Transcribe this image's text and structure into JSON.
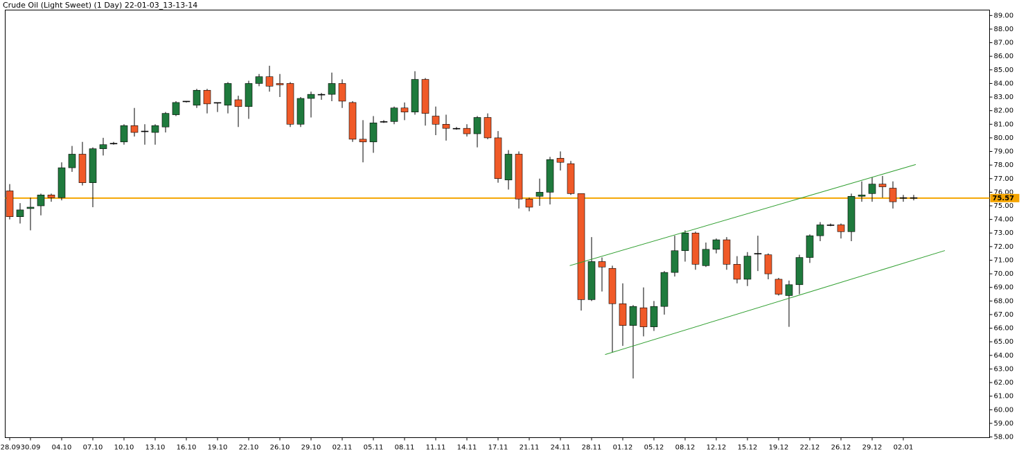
{
  "chart_data": {
    "type": "candlestick",
    "title": "Crude Oil (Light Sweet) (1 Day) 22-01-03_13-13-14",
    "categories": [
      "28.09",
      null,
      "30.09",
      null,
      null,
      "04.10",
      null,
      null,
      "07.10",
      null,
      null,
      "10.10",
      null,
      null,
      "13.10",
      null,
      null,
      "16.10",
      null,
      null,
      "19.10",
      null,
      null,
      "22.10",
      null,
      null,
      "26.10",
      null,
      null,
      "29.10",
      null,
      null,
      "02.11",
      null,
      null,
      "05.11",
      null,
      null,
      "08.11",
      null,
      null,
      "11.11",
      null,
      null,
      "14.11",
      null,
      null,
      "17.11",
      null,
      null,
      "21.11",
      null,
      null,
      "24.11",
      null,
      null,
      "28.11",
      null,
      null,
      "01.12",
      null,
      null,
      "05.12",
      null,
      null,
      "08.12",
      null,
      null,
      "12.12",
      null,
      null,
      "15.12",
      null,
      null,
      "19.12",
      null,
      null,
      "22.12",
      null,
      null,
      "26.12",
      null,
      null,
      "29.12",
      null,
      null,
      "02.01",
      null
    ],
    "open": [
      76.1,
      74.2,
      74.8,
      75.0,
      75.8,
      75.6,
      77.8,
      78.8,
      76.7,
      79.2,
      79.6,
      79.7,
      80.9,
      80.5,
      80.4,
      80.8,
      81.7,
      82.7,
      82.4,
      83.5,
      82.6,
      82.4,
      82.8,
      82.3,
      84.0,
      84.5,
      84.0,
      84.0,
      81.0,
      82.9,
      83.2,
      83.2,
      84.0,
      82.6,
      79.9,
      79.7,
      81.2,
      81.2,
      82.2,
      81.9,
      84.3,
      81.6,
      81.0,
      80.7,
      80.7,
      80.3,
      81.5,
      80.0,
      76.9,
      78.8,
      75.5,
      75.7,
      76.0,
      78.5,
      78.1,
      75.9,
      68.1,
      70.9,
      70.4,
      67.8,
      66.2,
      67.5,
      66.1,
      67.6,
      70.1,
      71.7,
      73.0,
      70.6,
      71.8,
      72.5,
      70.7,
      69.6,
      71.5,
      71.4,
      69.6,
      68.4,
      69.2,
      71.2,
      72.8,
      73.6,
      73.6,
      73.1,
      75.7,
      75.9,
      76.6,
      76.3,
      75.6,
      75.6
    ],
    "high": [
      76.6,
      75.2,
      75.6,
      75.9,
      75.9,
      78.2,
      79.4,
      79.7,
      79.3,
      80.0,
      79.7,
      81.0,
      82.2,
      81.0,
      81.0,
      81.9,
      82.7,
      82.7,
      83.6,
      83.6,
      82.6,
      84.1,
      83.1,
      84.2,
      84.7,
      85.3,
      84.7,
      84.1,
      83.0,
      83.4,
      83.3,
      84.8,
      84.3,
      82.7,
      81.3,
      81.6,
      81.3,
      82.3,
      82.6,
      84.9,
      84.4,
      82.3,
      81.7,
      80.8,
      81.0,
      81.6,
      81.8,
      80.5,
      79.1,
      79.0,
      75.6,
      77.0,
      78.6,
      79.0,
      78.3,
      75.9,
      72.7,
      71.2,
      70.6,
      69.3,
      67.7,
      69.0,
      68.0,
      70.2,
      72.8,
      73.2,
      73.1,
      72.3,
      72.6,
      72.7,
      71.3,
      71.6,
      72.8,
      71.5,
      69.7,
      69.5,
      71.4,
      72.9,
      73.8,
      73.7,
      73.7,
      75.9,
      76.8,
      77.1,
      77.2,
      76.8,
      75.8,
      75.8
    ],
    "low": [
      74.0,
      73.7,
      73.2,
      74.3,
      75.3,
      75.4,
      77.5,
      76.5,
      74.9,
      78.7,
      79.5,
      79.5,
      80.1,
      79.5,
      79.5,
      80.4,
      81.6,
      82.6,
      82.2,
      81.8,
      81.9,
      81.8,
      80.8,
      81.4,
      83.8,
      83.4,
      83.0,
      80.8,
      80.8,
      81.5,
      82.8,
      82.7,
      82.2,
      79.7,
      78.2,
      78.9,
      81.1,
      81.0,
      81.3,
      81.7,
      80.9,
      80.2,
      79.8,
      80.6,
      80.1,
      79.3,
      79.9,
      76.7,
      76.2,
      74.8,
      74.6,
      75.0,
      75.1,
      77.6,
      75.8,
      67.3,
      68.0,
      68.7,
      64.2,
      64.7,
      62.3,
      65.4,
      65.8,
      67.0,
      69.8,
      70.9,
      70.3,
      70.5,
      71.5,
      70.3,
      69.3,
      69.1,
      70.2,
      69.6,
      68.4,
      66.1,
      68.5,
      70.8,
      72.4,
      73.5,
      72.6,
      72.4,
      75.3,
      75.3,
      75.6,
      74.8,
      75.3,
      75.4
    ],
    "close": [
      74.2,
      74.7,
      74.9,
      75.8,
      75.6,
      77.8,
      78.8,
      76.7,
      79.2,
      79.5,
      79.6,
      80.9,
      80.4,
      80.5,
      80.9,
      81.8,
      82.6,
      82.7,
      83.5,
      82.5,
      82.6,
      84.0,
      82.3,
      84.0,
      84.5,
      83.8,
      83.9,
      81.0,
      82.9,
      83.2,
      83.2,
      84.0,
      82.7,
      79.9,
      79.7,
      81.1,
      81.2,
      82.2,
      81.9,
      84.3,
      81.8,
      81.0,
      80.7,
      80.7,
      80.3,
      81.5,
      80.0,
      77.0,
      78.8,
      75.5,
      74.9,
      76.0,
      78.4,
      78.2,
      75.9,
      68.1,
      70.9,
      70.5,
      67.8,
      66.2,
      67.6,
      66.1,
      67.6,
      70.1,
      71.7,
      73.0,
      70.7,
      71.8,
      72.5,
      70.7,
      69.6,
      71.3,
      71.5,
      70.0,
      68.5,
      69.2,
      71.2,
      72.8,
      73.6,
      73.6,
      73.1,
      75.7,
      75.8,
      76.6,
      76.4,
      75.3,
      75.6,
      75.6
    ],
    "up_color": "#1f7a3d",
    "down_color": "#f05a28",
    "ylim": [
      57.95,
      89.4
    ],
    "yticks": [
      {
        "value": 58,
        "label": "58.00"
      },
      {
        "value": 59,
        "label": "59.00"
      },
      {
        "value": 60,
        "label": "60.00"
      },
      {
        "value": 61,
        "label": "61.00"
      },
      {
        "value": 62,
        "label": "62.00"
      },
      {
        "value": 63,
        "label": "63.00"
      },
      {
        "value": 64,
        "label": "64.00"
      },
      {
        "value": 65,
        "label": "65.00"
      },
      {
        "value": 66,
        "label": "66.00"
      },
      {
        "value": 67,
        "label": "67.00"
      },
      {
        "value": 68,
        "label": "68.00"
      },
      {
        "value": 69,
        "label": "69.00"
      },
      {
        "value": 70,
        "label": "70.00"
      },
      {
        "value": 71,
        "label": "71.00"
      },
      {
        "value": 72,
        "label": "72.00"
      },
      {
        "value": 73,
        "label": "73.00"
      },
      {
        "value": 74,
        "label": "74.00"
      },
      {
        "value": 75,
        "label": "75.00"
      },
      {
        "value": 76,
        "label": "76.00"
      },
      {
        "value": 77,
        "label": "77.00"
      },
      {
        "value": 78,
        "label": "78.00"
      },
      {
        "value": 79,
        "label": "79.00"
      },
      {
        "value": 80,
        "label": "80.00"
      },
      {
        "value": 81,
        "label": "81.00"
      },
      {
        "value": 82,
        "label": "82.00"
      },
      {
        "value": 83,
        "label": "83.00"
      },
      {
        "value": 84,
        "label": "84.00"
      },
      {
        "value": 85,
        "label": "85.00"
      },
      {
        "value": 86,
        "label": "86.00"
      },
      {
        "value": 87,
        "label": "87.00"
      },
      {
        "value": 88,
        "label": "88.00"
      },
      {
        "value": 89,
        "label": "89.00"
      }
    ],
    "ref_line": {
      "value": 75.57,
      "color": "#f5a500"
    },
    "trendlines": [
      {
        "x": [
          53.9,
          87.2
        ],
        "y": [
          70.6,
          78.04
        ],
        "color": "#2e9e2e"
      },
      {
        "x": [
          57.3,
          90.0
        ],
        "y": [
          64.06,
          71.71
        ],
        "color": "#2e9e2e"
      }
    ]
  }
}
